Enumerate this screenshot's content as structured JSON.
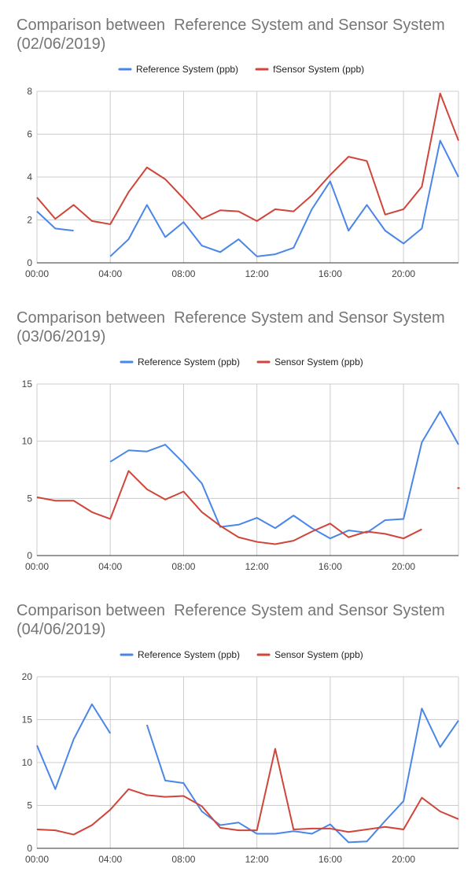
{
  "chart_data": [
    {
      "type": "line",
      "title_line1": "Comparison between  Reference System and Sensor System",
      "title_line2": "(02/06/2019)",
      "x": [
        0,
        1,
        2,
        3,
        4,
        5,
        6,
        7,
        8,
        9,
        10,
        11,
        12,
        13,
        14,
        15,
        16,
        17,
        18,
        19,
        20,
        21,
        22,
        23
      ],
      "xticks": [
        "00:00",
        "04:00",
        "08:00",
        "12:00",
        "16:00",
        "20:00"
      ],
      "ylim": [
        0,
        8
      ],
      "yticks": [
        "0",
        "2",
        "4",
        "6",
        "8"
      ],
      "grid": true,
      "legend": "top",
      "series": [
        {
          "name": "Reference System (ppb)",
          "color": "#4a86e8",
          "values": [
            2.4,
            1.6,
            1.5,
            null,
            0.3,
            1.1,
            2.7,
            1.2,
            1.9,
            0.8,
            0.5,
            1.1,
            0.3,
            0.4,
            0.7,
            2.5,
            3.8,
            1.5,
            2.7,
            1.5,
            0.9,
            1.6,
            5.7,
            4.0
          ]
        },
        {
          "name": "fSensor System (ppb)",
          "color": "#d0453a",
          "values": [
            3.05,
            2.05,
            2.7,
            1.95,
            1.8,
            3.3,
            4.45,
            3.9,
            3.0,
            2.05,
            2.45,
            2.4,
            1.95,
            2.5,
            2.4,
            3.15,
            4.1,
            4.95,
            4.75,
            2.25,
            2.5,
            3.55,
            7.9,
            5.7
          ]
        }
      ]
    },
    {
      "type": "line",
      "title_line1": "Comparison between  Reference System and Sensor System",
      "title_line2": "(03/06/2019)",
      "x": [
        0,
        1,
        2,
        3,
        4,
        5,
        6,
        7,
        8,
        9,
        10,
        11,
        12,
        13,
        14,
        15,
        16,
        17,
        18,
        19,
        20,
        21,
        22,
        23
      ],
      "xticks": [
        "00:00",
        "04:00",
        "08:00",
        "12:00",
        "16:00",
        "20:00"
      ],
      "ylim": [
        0,
        15
      ],
      "yticks": [
        "0",
        "5",
        "10",
        "15"
      ],
      "grid": true,
      "legend": "top",
      "series": [
        {
          "name": "Reference System (ppb)",
          "color": "#4a86e8",
          "values": [
            null,
            null,
            null,
            null,
            8.2,
            9.2,
            9.1,
            9.7,
            8.1,
            6.3,
            2.5,
            2.7,
            3.3,
            2.4,
            3.5,
            2.4,
            1.5,
            2.2,
            2.0,
            3.1,
            3.2,
            9.9,
            12.6,
            9.7
          ]
        },
        {
          "name": "Sensor System (ppb)",
          "color": "#d0453a",
          "values": [
            5.1,
            4.8,
            4.8,
            3.8,
            3.2,
            7.4,
            5.8,
            4.9,
            5.6,
            3.8,
            2.6,
            1.6,
            1.2,
            1.0,
            1.3,
            2.1,
            2.8,
            1.6,
            2.1,
            1.9,
            1.5,
            2.3,
            null,
            5.9
          ]
        }
      ]
    },
    {
      "type": "line",
      "title_line1": "Comparison between  Reference System and Sensor System",
      "title_line2": "(04/06/2019)",
      "x": [
        0,
        1,
        2,
        3,
        4,
        5,
        6,
        7,
        8,
        9,
        10,
        11,
        12,
        13,
        14,
        15,
        16,
        17,
        18,
        19,
        20,
        21,
        22,
        23
      ],
      "xticks": [
        "00:00",
        "04:00",
        "08:00",
        "12:00",
        "16:00",
        "20:00"
      ],
      "ylim": [
        0,
        20
      ],
      "yticks": [
        "0",
        "5",
        "10",
        "15",
        "20"
      ],
      "grid": true,
      "legend": "top",
      "series": [
        {
          "name": "Reference System (ppb)",
          "color": "#4a86e8",
          "values": [
            12.0,
            6.9,
            12.7,
            16.8,
            13.4,
            null,
            14.4,
            7.9,
            7.6,
            4.3,
            2.7,
            3.0,
            1.7,
            1.7,
            2.0,
            1.7,
            2.8,
            0.7,
            0.8,
            3.2,
            5.5,
            16.3,
            11.8,
            14.9
          ]
        },
        {
          "name": "Sensor System (ppb)",
          "color": "#d0453a",
          "values": [
            2.2,
            2.1,
            1.6,
            2.7,
            4.5,
            6.9,
            6.2,
            6.0,
            6.1,
            4.9,
            2.4,
            2.1,
            2.1,
            11.6,
            2.2,
            2.3,
            2.3,
            1.9,
            2.2,
            2.5,
            2.2,
            5.9,
            4.3,
            3.4
          ]
        }
      ]
    }
  ]
}
